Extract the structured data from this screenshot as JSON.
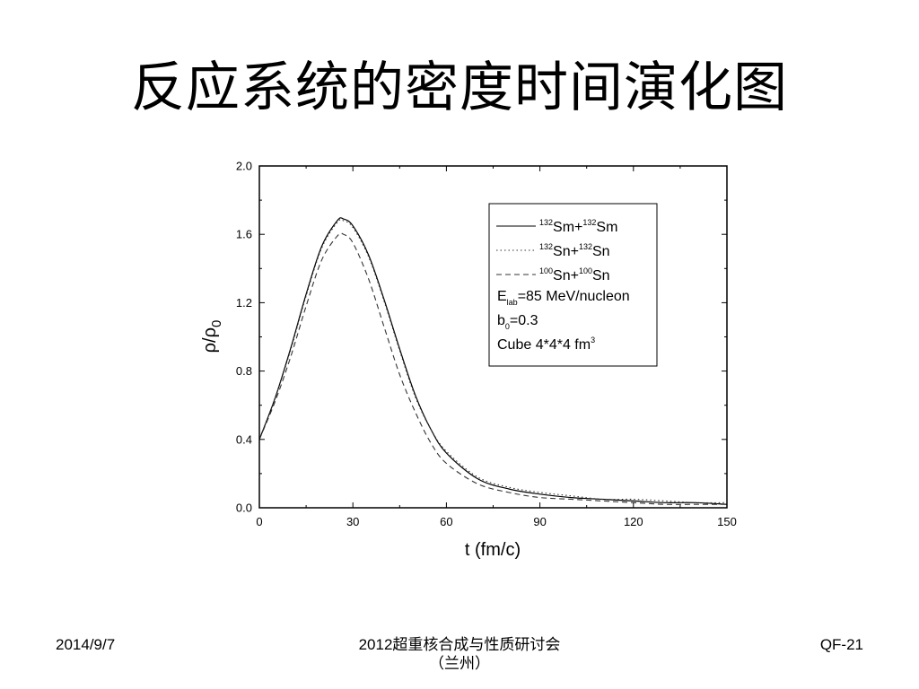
{
  "slide": {
    "title": "反应系统的密度时间演化图"
  },
  "footer": {
    "date": "2014/9/7",
    "center_line1": "2012超重核合成与性质研讨会",
    "center_line2": "（兰州）",
    "page_code": "QF-21"
  },
  "chart_data": {
    "type": "line",
    "xlabel": "t (fm/c)",
    "ylabel": "ρ/ρ0",
    "xlim": [
      0,
      150
    ],
    "ylim": [
      0,
      2.0
    ],
    "xticks": [
      0,
      30,
      60,
      90,
      120,
      150
    ],
    "yticks": [
      0.0,
      0.4,
      0.8,
      1.2,
      1.6,
      2.0
    ],
    "grid": false,
    "legend_position": "top-right",
    "series": [
      {
        "name": "132Sm+132Sm",
        "label_parts": [
          "132",
          "Sm+",
          "132",
          "Sm"
        ],
        "line_style": "solid",
        "color": "#000000",
        "x": [
          0,
          5,
          10,
          15,
          20,
          25,
          27,
          30,
          35,
          40,
          45,
          50,
          55,
          60,
          70,
          80,
          90,
          100,
          110,
          120,
          130,
          140,
          150
        ],
        "y": [
          0.4,
          0.64,
          0.93,
          1.25,
          1.53,
          1.68,
          1.69,
          1.65,
          1.48,
          1.22,
          0.93,
          0.66,
          0.46,
          0.32,
          0.17,
          0.11,
          0.08,
          0.06,
          0.05,
          0.04,
          0.03,
          0.03,
          0.02
        ]
      },
      {
        "name": "132Sn+132Sn",
        "label_parts": [
          "132",
          "Sn+",
          "132",
          "Sn"
        ],
        "line_style": "dotted",
        "color": "#333333",
        "x": [
          0,
          5,
          10,
          15,
          20,
          25,
          27,
          30,
          35,
          40,
          45,
          50,
          55,
          60,
          70,
          80,
          90,
          100,
          110,
          120,
          130,
          140,
          150
        ],
        "y": [
          0.4,
          0.64,
          0.92,
          1.24,
          1.52,
          1.67,
          1.68,
          1.64,
          1.47,
          1.21,
          0.92,
          0.65,
          0.46,
          0.33,
          0.18,
          0.12,
          0.09,
          0.07,
          0.05,
          0.05,
          0.04,
          0.03,
          0.03
        ]
      },
      {
        "name": "100Sn+100Sn",
        "label_parts": [
          "100",
          "Sn+",
          "100",
          "Sn"
        ],
        "line_style": "dashed",
        "color": "#333333",
        "x": [
          0,
          5,
          10,
          15,
          20,
          25,
          27,
          30,
          35,
          40,
          45,
          50,
          55,
          60,
          70,
          80,
          90,
          100,
          110,
          120,
          130,
          140,
          150
        ],
        "y": [
          0.4,
          0.62,
          0.88,
          1.18,
          1.45,
          1.59,
          1.6,
          1.55,
          1.34,
          1.06,
          0.78,
          0.56,
          0.38,
          0.26,
          0.14,
          0.09,
          0.06,
          0.05,
          0.04,
          0.03,
          0.02,
          0.02,
          0.02
        ]
      }
    ],
    "annotations": [
      {
        "main": "E",
        "sub": "lab",
        "rest": "=85 MeV/nucleon"
      },
      {
        "main": "b",
        "sub": "0",
        "rest": "=0.3"
      },
      {
        "main": "Cube 4*4*4 fm",
        "sup": "3",
        "rest": ""
      }
    ]
  }
}
